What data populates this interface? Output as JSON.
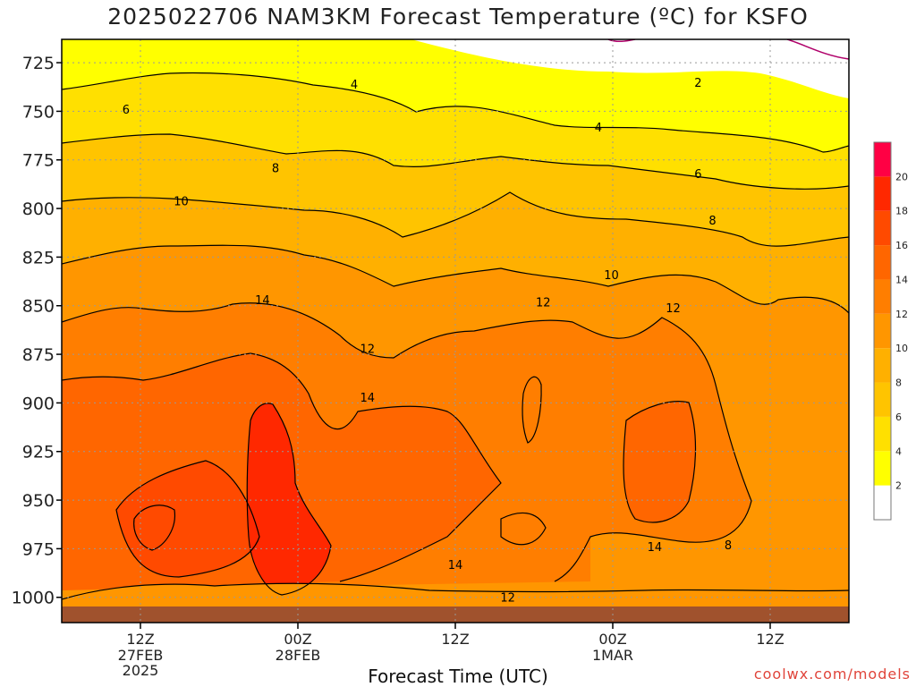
{
  "title": "2025022706 NAM3KM Forecast Temperature (ºC) for KSFO",
  "credit": "coolwx.com/models",
  "colors": {
    "scale": [
      "#ffffff",
      "#ffff00",
      "#ffe000",
      "#ffc400",
      "#ffb000",
      "#ff9600",
      "#ff7e00",
      "#ff6600",
      "#ff4a00",
      "#ff2800",
      "#ff0044"
    ],
    "ground": "#a0522d",
    "contour": "#000000",
    "freezing_contour": "#b0006a",
    "grid": "#999999"
  },
  "chart_data": {
    "type": "heatmap",
    "title": "2025022706 NAM3KM Forecast Temperature (ºC) for KSFO",
    "xlabel": "Forecast Time (UTC)",
    "ylabel": "",
    "x_ticks": [
      {
        "label": "12Z",
        "sub": "27FEB",
        "sub2": "2025",
        "hour": 6
      },
      {
        "label": "00Z",
        "sub": "28FEB",
        "sub2": "",
        "hour": 18
      },
      {
        "label": "12Z",
        "sub": "",
        "sub2": "",
        "hour": 30
      },
      {
        "label": "00Z",
        "sub": "1MAR",
        "sub2": "",
        "hour": 42
      },
      {
        "label": "12Z",
        "sub": "",
        "sub2": "",
        "hour": 54
      }
    ],
    "x_range_hours": [
      0,
      60
    ],
    "y_ticks": [
      725,
      750,
      775,
      800,
      825,
      850,
      875,
      900,
      925,
      950,
      975,
      1000
    ],
    "y_range_hPa": [
      713,
      1013
    ],
    "colorbar": {
      "levels": [
        0,
        2,
        4,
        6,
        8,
        10,
        12,
        14,
        16,
        18,
        20,
        22
      ],
      "labels": [
        "2",
        "4",
        "6",
        "8",
        "10",
        "12",
        "14",
        "16",
        "18",
        "20"
      ]
    },
    "contour_labels": [
      {
        "text": "2",
        "hour": 48.5,
        "hPa": 735
      },
      {
        "text": "4",
        "hour": 22.3,
        "hPa": 736
      },
      {
        "text": "4",
        "hour": 40.9,
        "hPa": 758
      },
      {
        "text": "6",
        "hour": 4.9,
        "hPa": 749
      },
      {
        "text": "6",
        "hour": 48.5,
        "hPa": 782
      },
      {
        "text": "8",
        "hour": 16.3,
        "hPa": 779
      },
      {
        "text": "8",
        "hour": 49.6,
        "hPa": 806
      },
      {
        "text": "8",
        "hour": 50.8,
        "hPa": 973
      },
      {
        "text": "10",
        "hour": 9.1,
        "hPa": 796
      },
      {
        "text": "10",
        "hour": 41.9,
        "hPa": 834
      },
      {
        "text": "12",
        "hour": 36.7,
        "hPa": 848
      },
      {
        "text": "12",
        "hour": 46.6,
        "hPa": 851
      },
      {
        "text": "12",
        "hour": 23.3,
        "hPa": 872
      },
      {
        "text": "12",
        "hour": 34.0,
        "hPa": 1000
      },
      {
        "text": "14",
        "hour": 15.3,
        "hPa": 847
      },
      {
        "text": "14",
        "hour": 23.3,
        "hPa": 897
      },
      {
        "text": "14",
        "hour": 30.0,
        "hPa": 983
      },
      {
        "text": "14",
        "hour": 45.2,
        "hPa": 974
      }
    ]
  }
}
